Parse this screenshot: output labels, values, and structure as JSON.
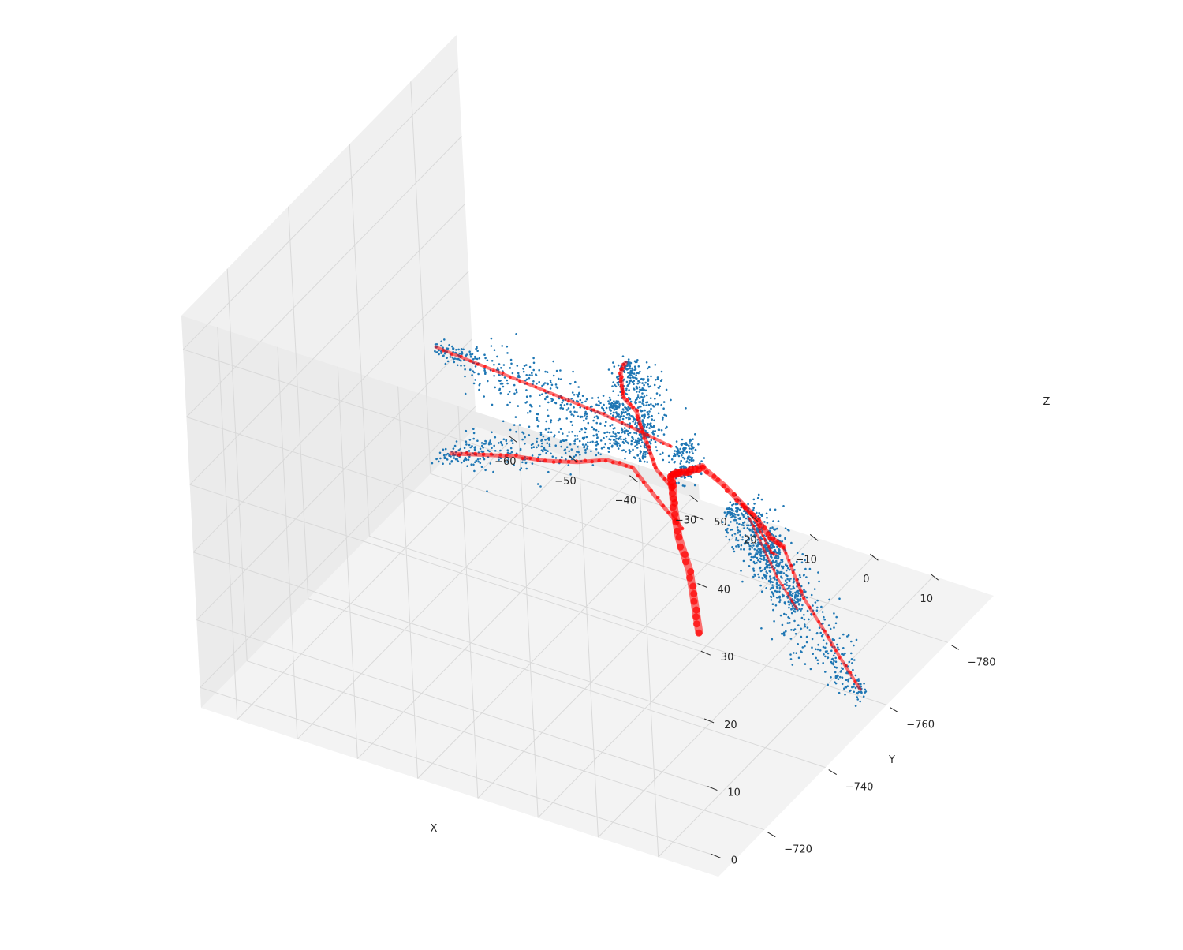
{
  "chart_data": {
    "type": "scatter",
    "projection": "3d",
    "xlabel": "X",
    "ylabel": "Y",
    "zlabel": "Z",
    "x_ticks": [
      -60,
      -50,
      -40,
      -30,
      -20,
      -10,
      0,
      10
    ],
    "y_ticks": [
      -720,
      -740,
      -760,
      -780
    ],
    "z_ticks": [
      0,
      10,
      20,
      30,
      40,
      50
    ],
    "xlim": [
      -66,
      20
    ],
    "ylim": [
      -795,
      -705
    ],
    "zlim": [
      -3,
      55
    ],
    "grid": true,
    "legend": "none",
    "colors": {
      "points": "#1f77b4",
      "skeleton": "#ff0000",
      "pane_left": "#f0f0f0",
      "pane_back": "#ebebeb",
      "pane_floor": "#f3f3f3",
      "grid": "#d9d9d9"
    },
    "series": [
      {
        "role": "point-cloud",
        "clusters": [
          {
            "leaf": "top-leaf",
            "base": [
              -10,
              -745,
              35
            ],
            "tip": [
              -6,
              -732,
              53
            ],
            "width": 3.2,
            "count": 360
          },
          {
            "leaf": "upper-left-leaf",
            "base": [
              -20,
              -750,
              33
            ],
            "tip": [
              -45,
              -745,
              38
            ],
            "width": 3.0,
            "count": 330
          },
          {
            "leaf": "left-leaf",
            "base": [
              -28,
              -770,
              18
            ],
            "tip": [
              -60,
              -772,
              5
            ],
            "width": 3.4,
            "count": 360
          },
          {
            "leaf": "inner-left-leaf",
            "base": [
              -12,
              -748,
              30
            ],
            "tip": [
              -14,
              -742,
              40
            ],
            "width": 2.6,
            "count": 180
          },
          {
            "leaf": "inner-right-leaf",
            "base": [
              -4,
              -745,
              31
            ],
            "tip": [
              0,
              -738,
              40
            ],
            "width": 2.4,
            "count": 150
          },
          {
            "leaf": "right-upper-leaf",
            "base": [
              5,
              -742,
              30
            ],
            "tip": [
              20,
              -728,
              34
            ],
            "width": 2.8,
            "count": 300
          },
          {
            "leaf": "right-mid-leaf",
            "base": [
              6,
              -748,
              25
            ],
            "tip": [
              10,
              -752,
              12
            ],
            "width": 2.6,
            "count": 220
          },
          {
            "leaf": "right-lower-leaf",
            "base": [
              8,
              -744,
              24
            ],
            "tip": [
              20,
              -752,
              2
            ],
            "width": 3.4,
            "count": 400
          }
        ]
      },
      {
        "role": "skeleton",
        "paths": [
          {
            "name": "stem",
            "width": 10,
            "points": [
              [
                -10,
                -758,
                0
              ],
              [
                -10,
                -757,
                5
              ],
              [
                -10,
                -756,
                10
              ],
              [
                -11,
                -755,
                15
              ],
              [
                -11,
                -754,
                20
              ],
              [
                -10,
                -752,
                24
              ],
              [
                -9,
                -750,
                27
              ],
              [
                -7,
                -748,
                29
              ],
              [
                -4,
                -746,
                31
              ],
              [
                -1,
                -745,
                33
              ]
            ]
          },
          {
            "name": "top-branch",
            "width": 5,
            "points": [
              [
                -10,
                -752,
                24
              ],
              [
                -11,
                -749,
                28
              ],
              [
                -11,
                -747,
                32
              ],
              [
                -11,
                -745,
                36
              ],
              [
                -10,
                -742,
                40
              ],
              [
                -10,
                -738,
                44
              ],
              [
                -9,
                -736,
                47
              ],
              [
                -8,
                -734,
                50
              ],
              [
                -6,
                -732,
                53
              ]
            ]
          },
          {
            "name": "upper-left-branch",
            "width": 4,
            "points": [
              [
                -11,
                -754,
                29
              ],
              [
                -15,
                -752,
                31
              ],
              [
                -20,
                -750,
                33
              ],
              [
                -25,
                -749,
                34
              ],
              [
                -30,
                -748,
                35
              ],
              [
                -35,
                -747,
                36
              ],
              [
                -40,
                -746,
                37
              ],
              [
                -45,
                -745,
                38
              ]
            ]
          },
          {
            "name": "left-branch",
            "width": 5,
            "points": [
              [
                -11,
                -756,
                16
              ],
              [
                -16,
                -758,
                18
              ],
              [
                -22,
                -762,
                19
              ],
              [
                -28,
                -765,
                17
              ],
              [
                -34,
                -767,
                14
              ],
              [
                -40,
                -768,
                12
              ],
              [
                -46,
                -770,
                10
              ],
              [
                -52,
                -771,
                8
              ],
              [
                -58,
                -772,
                6
              ]
            ]
          },
          {
            "name": "right-branch",
            "width": 7,
            "points": [
              [
                -1,
                -745,
                33
              ],
              [
                3,
                -744,
                32
              ],
              [
                6,
                -744,
                30
              ],
              [
                9,
                -743,
                29
              ],
              [
                11,
                -743,
                27
              ],
              [
                12,
                -745,
                25
              ]
            ]
          },
          {
            "name": "right-lower-branch",
            "width": 4,
            "points": [
              [
                12,
                -745,
                25
              ],
              [
                13,
                -746,
                21
              ],
              [
                14,
                -747,
                17
              ],
              [
                16,
                -749,
                12
              ],
              [
                18,
                -750,
                8
              ],
              [
                20,
                -752,
                3
              ]
            ]
          },
          {
            "name": "right-upper-branch",
            "width": 3,
            "points": [
              [
                6,
                -744,
                30
              ],
              [
                10,
                -740,
                31
              ],
              [
                14,
                -735,
                32
              ],
              [
                18,
                -730,
                33
              ],
              [
                20,
                -728,
                34
              ]
            ]
          },
          {
            "name": "right-mid-branch",
            "width": 3,
            "points": [
              [
                6,
                -746,
                27
              ],
              [
                7,
                -748,
                22
              ],
              [
                8,
                -750,
                17
              ],
              [
                10,
                -752,
                12
              ]
            ]
          }
        ]
      }
    ]
  }
}
